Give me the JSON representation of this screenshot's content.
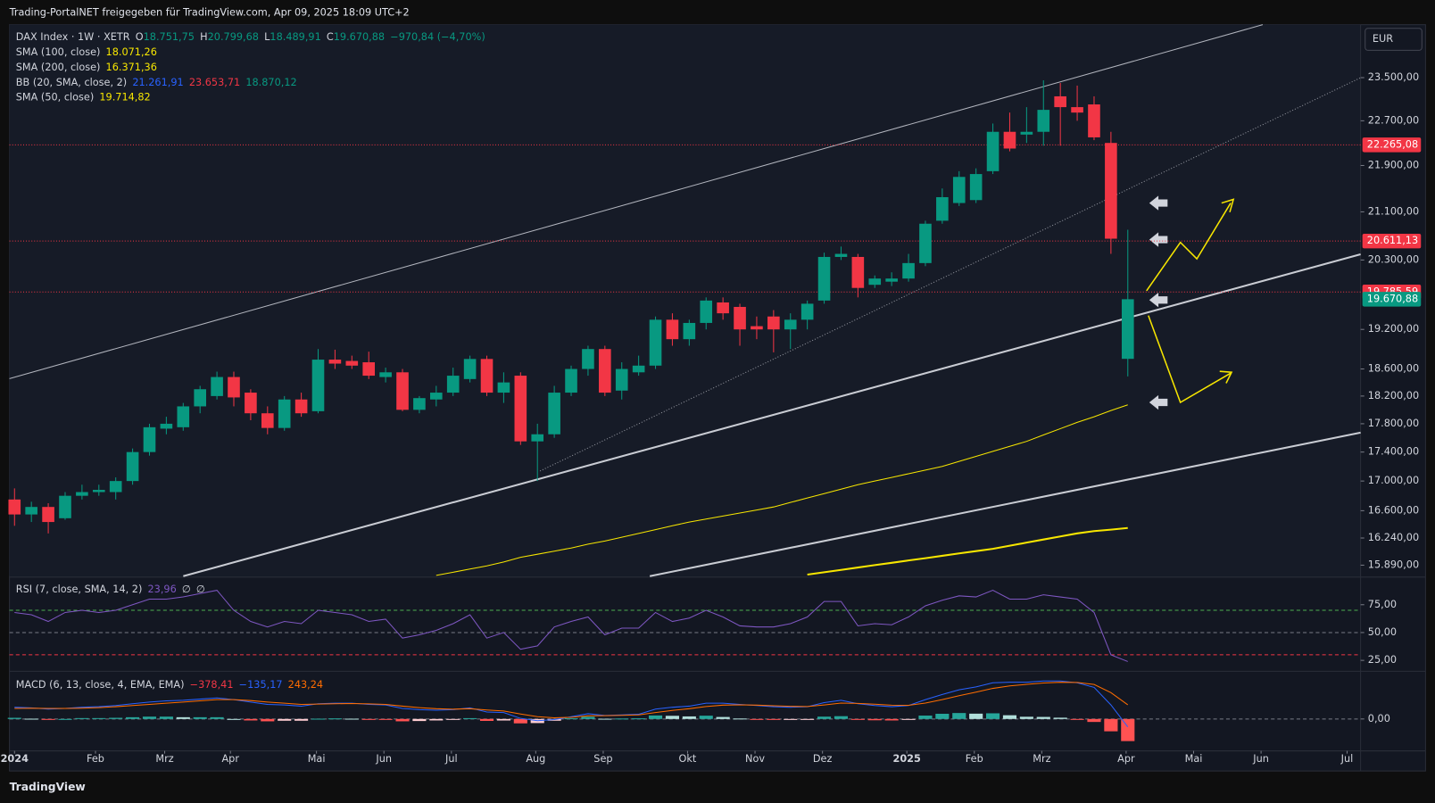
{
  "page": {
    "caption": "Trading-PortalNET freigegeben für TradingView.com, Apr 09, 2025 18:09 UTC+2",
    "brand": "TradingView",
    "currency": "EUR"
  },
  "chart_data": [
    {
      "type": "candlestick",
      "header": {
        "symbol": "DAX Index · 1W · XETR",
        "ohlc": [
          {
            "key": "O",
            "value": "18.751,75"
          },
          {
            "key": "H",
            "value": "20.799,68"
          },
          {
            "key": "L",
            "value": "18.489,91"
          },
          {
            "key": "C",
            "value": "19.670,88"
          }
        ],
        "change": "−970,84 (−4,70%)"
      },
      "legend": [
        {
          "name": "SMA (100, close)",
          "values": [
            "18.071,26"
          ],
          "colors": [
            "#f7e600"
          ]
        },
        {
          "name": "SMA (200, close)",
          "values": [
            "16.371,36"
          ],
          "colors": [
            "#f7e600"
          ]
        },
        {
          "name": "BB (20, SMA, close, 2)",
          "values": [
            "21.261,91",
            "23.653,71",
            "18.870,12"
          ],
          "colors": [
            "#2962ff",
            "#f23645",
            "#089981"
          ]
        },
        {
          "name": "SMA (50, close)",
          "values": [
            "19.714,82"
          ],
          "colors": [
            "#f7e600"
          ]
        }
      ],
      "up_color": "#089981",
      "down_color": "#f23645",
      "open": [
        16750,
        16550,
        16650,
        16500,
        16800,
        16850,
        16850,
        17000,
        17400,
        17730,
        17750,
        18050,
        18200,
        18480,
        18250,
        17950,
        17740,
        18150,
        17980,
        18740,
        18720,
        18700,
        18480,
        18550,
        18000,
        18150,
        18250,
        18450,
        18750,
        18250,
        18500,
        17550,
        17650,
        18250,
        18600,
        18900,
        18280,
        18550,
        18650,
        19350,
        19050,
        19300,
        19620,
        19550,
        19250,
        19400,
        19200,
        19350,
        19650,
        20350,
        20350,
        19900,
        19950,
        20000,
        20250,
        20950,
        21250,
        21300,
        21800,
        22500,
        22450,
        22500,
        23150,
        22950,
        23000,
        22300,
        18751.75
      ],
      "high": [
        16900,
        16720,
        16700,
        16850,
        16950,
        16950,
        17050,
        17450,
        17800,
        17900,
        18100,
        18350,
        18560,
        18560,
        18300,
        18050,
        18200,
        18250,
        18900,
        18890,
        18800,
        18860,
        18620,
        18600,
        18200,
        18350,
        18620,
        18800,
        18800,
        18550,
        18550,
        17800,
        18350,
        18650,
        18950,
        18950,
        18700,
        18800,
        19400,
        19450,
        19350,
        19700,
        19700,
        19600,
        19400,
        19500,
        19450,
        19650,
        20420,
        20520,
        20400,
        20050,
        20100,
        20400,
        20950,
        21500,
        21800,
        21850,
        22650,
        22850,
        22950,
        23450,
        23400,
        23350,
        23150,
        22500,
        20799.68
      ],
      "low": [
        16400,
        16450,
        16300,
        16480,
        16750,
        16800,
        16750,
        16950,
        17350,
        17650,
        17700,
        17950,
        18150,
        18050,
        17850,
        17650,
        17700,
        17900,
        17950,
        18600,
        18600,
        18450,
        18400,
        17980,
        17950,
        18050,
        18200,
        18400,
        18200,
        18100,
        17500,
        17000,
        17600,
        18200,
        18500,
        18200,
        18150,
        18500,
        18600,
        18950,
        18950,
        19200,
        19350,
        18950,
        19050,
        18850,
        18900,
        19200,
        19600,
        20300,
        19700,
        19850,
        19880,
        19950,
        20200,
        20900,
        21200,
        21250,
        21750,
        22150,
        22300,
        22250,
        22250,
        22700,
        22350,
        20400,
        18489.91
      ],
      "close": [
        16550,
        16650,
        16450,
        16800,
        16850,
        16880,
        17000,
        17400,
        17750,
        17800,
        18050,
        18300,
        18480,
        18180,
        17950,
        17740,
        18150,
        17950,
        18740,
        18680,
        18650,
        18500,
        18550,
        18000,
        18170,
        18250,
        18500,
        18750,
        18250,
        18400,
        17550,
        17650,
        18250,
        18600,
        18900,
        18250,
        18600,
        18650,
        19350,
        19050,
        19300,
        19650,
        19450,
        19200,
        19200,
        19200,
        19350,
        19600,
        20350,
        20400,
        19850,
        20000,
        20000,
        20250,
        20900,
        21350,
        21700,
        21750,
        22500,
        22200,
        22500,
        22900,
        22950,
        22850,
        22400,
        20650,
        19670.88
      ],
      "series": [
        {
          "color": "#f7e600",
          "width": 1,
          "values": [
            null,
            null,
            null,
            null,
            null,
            null,
            null,
            null,
            null,
            null,
            null,
            null,
            null,
            null,
            null,
            null,
            null,
            null,
            null,
            null,
            null,
            null,
            null,
            null,
            null,
            15760,
            15800,
            15840,
            15880,
            15930,
            15990,
            16030,
            16070,
            16110,
            16160,
            16200,
            16250,
            16300,
            16350,
            16400,
            16450,
            16490,
            16530,
            16570,
            16610,
            16650,
            16710,
            16770,
            16830,
            16890,
            16950,
            17000,
            17050,
            17100,
            17150,
            17200,
            17270,
            17340,
            17410,
            17480,
            17550,
            17640,
            17730,
            17820,
            17900,
            17990,
            18071.26
          ]
        },
        {
          "color": "#f7e600",
          "width": 2,
          "values": [
            null,
            null,
            null,
            null,
            null,
            null,
            null,
            null,
            null,
            null,
            null,
            null,
            null,
            null,
            null,
            null,
            null,
            null,
            null,
            null,
            null,
            null,
            null,
            null,
            null,
            null,
            null,
            null,
            null,
            null,
            null,
            null,
            null,
            null,
            null,
            null,
            null,
            null,
            null,
            null,
            null,
            null,
            null,
            null,
            null,
            null,
            null,
            15770,
            15800,
            15830,
            15860,
            15890,
            15920,
            15950,
            15980,
            16010,
            16040,
            16070,
            16100,
            16140,
            16180,
            16220,
            16260,
            16300,
            16330,
            16350,
            16371.36
          ]
        }
      ],
      "price_lines": [
        {
          "value": 22265.08,
          "label": "22.265,08",
          "color": "#f23645"
        },
        {
          "value": 20611.13,
          "label": "20.611,13",
          "color": "#f23645"
        },
        {
          "value": 19785.59,
          "label": "19.785,59",
          "color": "#f23645"
        }
      ],
      "last_price": {
        "value": 19670.88,
        "label": "19.670,88",
        "color": "#089981"
      },
      "log_scale": true,
      "ylim": [
        15750,
        24520
      ],
      "yticks": [
        {
          "value": 23500,
          "label": "23.500,00"
        },
        {
          "value": 22700,
          "label": "22.700,00"
        },
        {
          "value": 21900,
          "label": "21.900,00"
        },
        {
          "value": 21100,
          "label": "21.100,00"
        },
        {
          "value": 20300,
          "label": "20.300,00"
        },
        {
          "value": 19200,
          "label": "19.200,00"
        },
        {
          "value": 18600,
          "label": "18.600,00"
        },
        {
          "value": 18200,
          "label": "18.200,00"
        },
        {
          "value": 17800,
          "label": "17.800,00"
        },
        {
          "value": 17400,
          "label": "17.400,00"
        },
        {
          "value": 17000,
          "label": "17.000,00"
        },
        {
          "value": 16600,
          "label": "16.600,00"
        },
        {
          "value": 16240,
          "label": "16.240,00"
        },
        {
          "value": 15890,
          "label": "15.890,00"
        }
      ],
      "xlim": [
        -0.3,
        79.8
      ],
      "xticks": [
        {
          "value": 0,
          "label": "2024"
        },
        {
          "value": 4.8,
          "label": "Feb"
        },
        {
          "value": 8.9,
          "label": "Mrz"
        },
        {
          "value": 12.8,
          "label": "Apr"
        },
        {
          "value": 17.9,
          "label": "Mai"
        },
        {
          "value": 21.9,
          "label": "Jun"
        },
        {
          "value": 25.9,
          "label": "Jul"
        },
        {
          "value": 30.9,
          "label": "Aug"
        },
        {
          "value": 34.9,
          "label": "Sep"
        },
        {
          "value": 39.9,
          "label": "Okt"
        },
        {
          "value": 43.9,
          "label": "Nov"
        },
        {
          "value": 47.9,
          "label": "Dez"
        },
        {
          "value": 52.9,
          "label": "2025"
        },
        {
          "value": 56.9,
          "label": "Feb"
        },
        {
          "value": 60.9,
          "label": "Mrz"
        },
        {
          "value": 65.9,
          "label": "Apr"
        },
        {
          "value": 69.9,
          "label": "Mai"
        },
        {
          "value": 73.9,
          "label": "Jun"
        },
        {
          "value": 79.0,
          "label": "Jul"
        }
      ]
    },
    {
      "type": "line",
      "legend": [
        {
          "name": "RSI (7, close, SMA, 14, 2)",
          "values": [
            "23,96",
            "∅",
            "∅"
          ],
          "colors": [
            "#7e57c2",
            "#d1d4dc",
            "#d1d4dc"
          ]
        }
      ],
      "series": [
        {
          "color": "#7e57c2",
          "width": 1,
          "values": [
            68,
            66,
            60,
            68,
            70,
            68,
            70,
            75,
            80,
            80,
            82,
            85,
            88,
            70,
            60,
            55,
            60,
            58,
            70,
            68,
            66,
            60,
            62,
            45,
            48,
            52,
            58,
            66,
            45,
            50,
            35,
            38,
            55,
            60,
            64,
            48,
            54,
            54,
            68,
            60,
            63,
            70,
            64,
            56,
            55,
            55,
            58,
            64,
            78,
            78,
            56,
            58,
            57,
            64,
            74,
            79,
            83,
            82,
            88,
            80,
            80,
            84,
            82,
            80,
            68,
            30,
            23.96
          ]
        }
      ],
      "levels": [
        {
          "value": 70,
          "color": "#4caf50"
        },
        {
          "value": 50,
          "color": "#787b86"
        },
        {
          "value": 30,
          "color": "#f23645"
        }
      ],
      "ylim": [
        16,
        99
      ],
      "yticks": [
        {
          "value": 75,
          "label": "75,00"
        },
        {
          "value": 50,
          "label": "50,00"
        },
        {
          "value": 25,
          "label": "25,00"
        }
      ]
    },
    {
      "type": "macd",
      "legend": [
        {
          "name": "MACD (6, 13, close, 4, EMA, EMA)",
          "values": [
            "−378,41",
            "−135,17",
            "243,24"
          ],
          "colors": [
            "#f23645",
            "#2962ff",
            "#ff6d00"
          ]
        }
      ],
      "histogram": {
        "colors": [
          "#26a69a",
          "#b2dfdb",
          "#ffcdd2",
          "#ff5252"
        ],
        "values": [
          20,
          5,
          -10,
          0,
          15,
          15,
          20,
          30,
          40,
          40,
          30,
          30,
          30,
          0,
          -25,
          -40,
          -30,
          -30,
          5,
          10,
          5,
          -8,
          -10,
          -40,
          -35,
          -25,
          -8,
          14,
          -33,
          -26,
          -75,
          -70,
          -30,
          12,
          37,
          4,
          8,
          11,
          60,
          54,
          44,
          56,
          34,
          8,
          -7,
          -16,
          -16,
          -4,
          40,
          48,
          -7,
          -22,
          -25,
          -3,
          58,
          89,
          102,
          91,
          97,
          64,
          38,
          35,
          22,
          -5,
          -51,
          -211,
          -378.41
        ]
      },
      "series": [
        {
          "color": "#2962ff",
          "width": 1,
          "values": [
            200,
            190,
            170,
            180,
            200,
            210,
            230,
            260,
            290,
            310,
            320,
            340,
            360,
            330,
            290,
            250,
            240,
            220,
            260,
            270,
            270,
            250,
            240,
            180,
            160,
            150,
            160,
            190,
            120,
            110,
            10,
            -30,
            -10,
            40,
            90,
            60,
            70,
            80,
            170,
            200,
            220,
            270,
            270,
            250,
            230,
            210,
            200,
            210,
            280,
            320,
            260,
            230,
            210,
            230,
            330,
            420,
            500,
            550,
            620,
            630,
            630,
            650,
            650,
            620,
            540,
            240,
            -135.17
          ]
        },
        {
          "color": "#ff6d00",
          "width": 1,
          "values": [
            180,
            185,
            180,
            180,
            185,
            195,
            210,
            230,
            250,
            270,
            290,
            310,
            330,
            330,
            315,
            290,
            270,
            250,
            255,
            260,
            265,
            258,
            250,
            220,
            195,
            175,
            168,
            176,
            153,
            136,
            85,
            40,
            20,
            28,
            53,
            56,
            62,
            69,
            110,
            146,
            176,
            214,
            236,
            242,
            237,
            226,
            216,
            214,
            240,
            272,
            267,
            252,
            235,
            233,
            272,
            331,
            398,
            459,
            523,
            566,
            592,
            615,
            628,
            625,
            591,
            451,
            243.24
          ]
        }
      ],
      "ylim": [
        -530,
        800
      ],
      "yticks": [
        {
          "value": 0,
          "label": "0,00"
        }
      ]
    }
  ]
}
